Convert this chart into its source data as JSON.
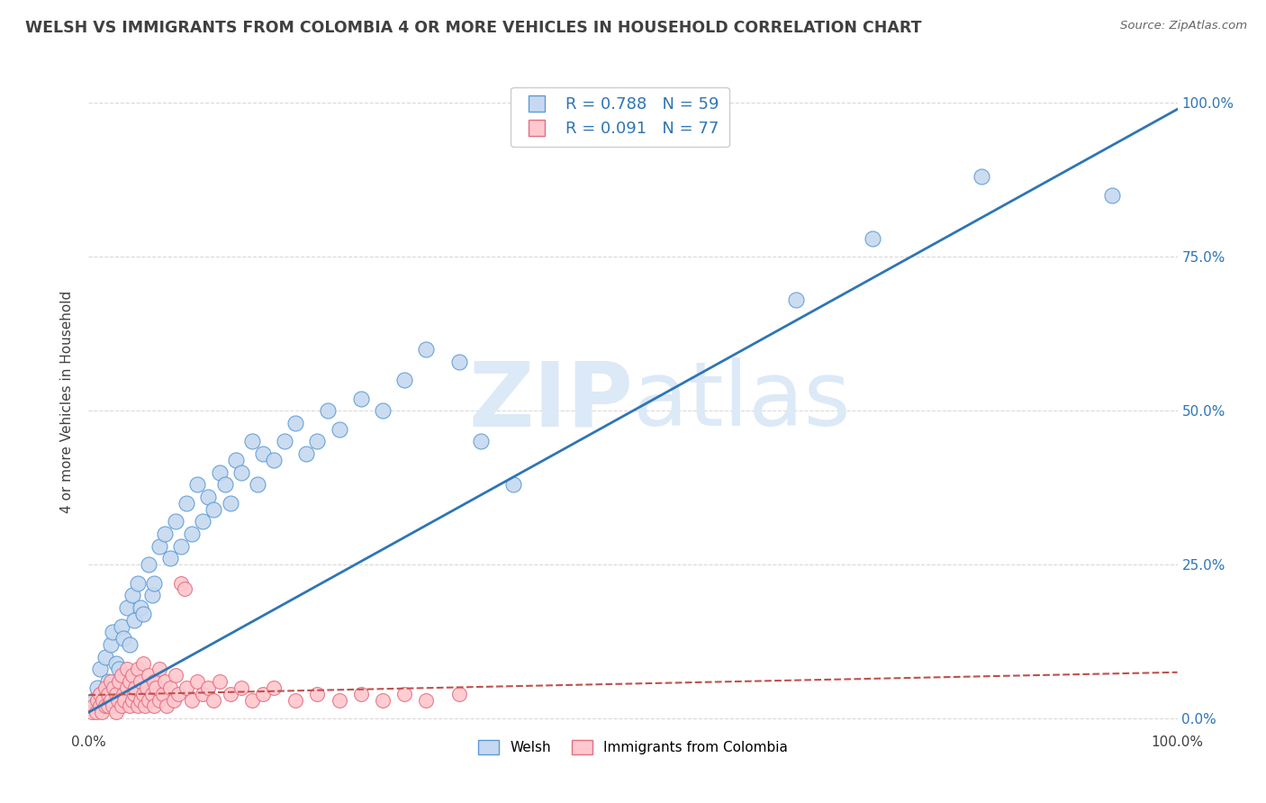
{
  "title": "WELSH VS IMMIGRANTS FROM COLOMBIA 4 OR MORE VEHICLES IN HOUSEHOLD CORRELATION CHART",
  "source": "Source: ZipAtlas.com",
  "ylabel": "4 or more Vehicles in Household",
  "xlim": [
    0,
    1
  ],
  "ylim": [
    -0.02,
    1.05
  ],
  "welsh_R": 0.788,
  "welsh_N": 59,
  "colombia_R": 0.091,
  "colombia_N": 77,
  "welsh_color": "#c6d9f0",
  "welsh_edge_color": "#5b9bd5",
  "colombia_color": "#ffc7ce",
  "colombia_edge_color": "#e07080",
  "welsh_line_color": "#2e75b6",
  "colombia_line_color": "#c0504d",
  "watermark_color": "#dce9f7",
  "background_color": "#ffffff",
  "grid_color": "#d9d9d9",
  "legend_label_welsh": "Welsh",
  "legend_label_colombia": "Immigrants from Colombia",
  "title_color": "#404040",
  "axis_label_color": "#404040",
  "right_tick_color": "#2e75b6",
  "bottom_tick_color": "#404040",
  "welsh_scatter_x": [
    0.005,
    0.008,
    0.01,
    0.012,
    0.015,
    0.018,
    0.02,
    0.022,
    0.025,
    0.028,
    0.03,
    0.032,
    0.035,
    0.038,
    0.04,
    0.042,
    0.045,
    0.048,
    0.05,
    0.055,
    0.058,
    0.06,
    0.065,
    0.07,
    0.075,
    0.08,
    0.085,
    0.09,
    0.095,
    0.1,
    0.105,
    0.11,
    0.115,
    0.12,
    0.125,
    0.13,
    0.135,
    0.14,
    0.15,
    0.155,
    0.16,
    0.17,
    0.18,
    0.19,
    0.2,
    0.21,
    0.22,
    0.23,
    0.25,
    0.27,
    0.29,
    0.31,
    0.34,
    0.36,
    0.39,
    0.65,
    0.72,
    0.82,
    0.94
  ],
  "welsh_scatter_y": [
    0.03,
    0.05,
    0.08,
    0.04,
    0.1,
    0.06,
    0.12,
    0.14,
    0.09,
    0.08,
    0.15,
    0.13,
    0.18,
    0.12,
    0.2,
    0.16,
    0.22,
    0.18,
    0.17,
    0.25,
    0.2,
    0.22,
    0.28,
    0.3,
    0.26,
    0.32,
    0.28,
    0.35,
    0.3,
    0.38,
    0.32,
    0.36,
    0.34,
    0.4,
    0.38,
    0.35,
    0.42,
    0.4,
    0.45,
    0.38,
    0.43,
    0.42,
    0.45,
    0.48,
    0.43,
    0.45,
    0.5,
    0.47,
    0.52,
    0.5,
    0.55,
    0.6,
    0.58,
    0.45,
    0.38,
    0.68,
    0.78,
    0.88,
    0.85
  ],
  "colombia_scatter_x": [
    0.003,
    0.005,
    0.007,
    0.008,
    0.01,
    0.01,
    0.012,
    0.013,
    0.015,
    0.015,
    0.018,
    0.018,
    0.02,
    0.02,
    0.022,
    0.023,
    0.025,
    0.025,
    0.027,
    0.028,
    0.03,
    0.03,
    0.032,
    0.033,
    0.035,
    0.035,
    0.038,
    0.038,
    0.04,
    0.04,
    0.042,
    0.043,
    0.045,
    0.045,
    0.048,
    0.048,
    0.05,
    0.05,
    0.052,
    0.053,
    0.055,
    0.055,
    0.058,
    0.06,
    0.06,
    0.062,
    0.065,
    0.065,
    0.068,
    0.07,
    0.072,
    0.075,
    0.078,
    0.08,
    0.082,
    0.085,
    0.088,
    0.09,
    0.095,
    0.1,
    0.105,
    0.11,
    0.115,
    0.12,
    0.13,
    0.14,
    0.15,
    0.16,
    0.17,
    0.19,
    0.21,
    0.23,
    0.25,
    0.27,
    0.29,
    0.31,
    0.34
  ],
  "colombia_scatter_y": [
    0.01,
    0.02,
    0.01,
    0.03,
    0.02,
    0.04,
    0.01,
    0.03,
    0.02,
    0.05,
    0.02,
    0.04,
    0.03,
    0.06,
    0.02,
    0.05,
    0.01,
    0.04,
    0.03,
    0.06,
    0.02,
    0.07,
    0.04,
    0.03,
    0.05,
    0.08,
    0.02,
    0.06,
    0.03,
    0.07,
    0.04,
    0.05,
    0.02,
    0.08,
    0.03,
    0.06,
    0.04,
    0.09,
    0.02,
    0.05,
    0.03,
    0.07,
    0.04,
    0.02,
    0.06,
    0.05,
    0.03,
    0.08,
    0.04,
    0.06,
    0.02,
    0.05,
    0.03,
    0.07,
    0.04,
    0.22,
    0.21,
    0.05,
    0.03,
    0.06,
    0.04,
    0.05,
    0.03,
    0.06,
    0.04,
    0.05,
    0.03,
    0.04,
    0.05,
    0.03,
    0.04,
    0.03,
    0.04,
    0.03,
    0.04,
    0.03,
    0.04
  ],
  "welsh_line_x": [
    0.0,
    1.0
  ],
  "welsh_line_y": [
    0.01,
    0.99
  ],
  "colombia_line_x": [
    0.0,
    1.0
  ],
  "colombia_line_y": [
    0.038,
    0.075
  ]
}
